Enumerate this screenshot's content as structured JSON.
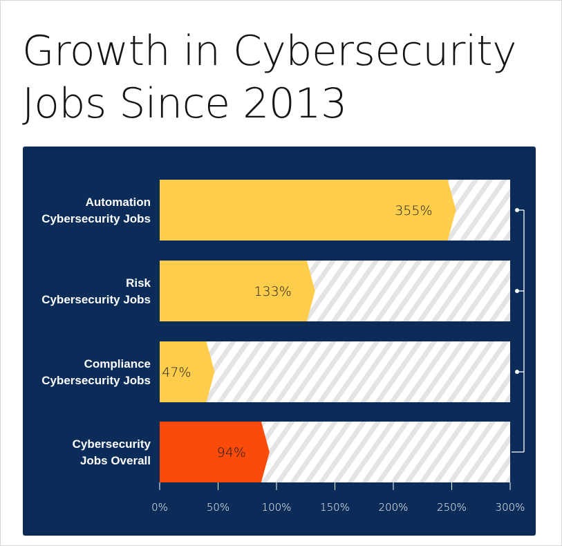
{
  "chart_data": {
    "type": "bar",
    "orientation": "horizontal",
    "title_lines": [
      "Growth in Cybersecurity",
      "Jobs Since 2013"
    ],
    "categories": [
      [
        "Automation",
        "Cybersecurity Jobs"
      ],
      [
        "Risk",
        "Cybersecurity Jobs"
      ],
      [
        "Compliance",
        "Cybersecurity Jobs"
      ],
      [
        "Cybersecurity",
        "Jobs Overall"
      ]
    ],
    "values": [
      355,
      133,
      47,
      94
    ],
    "value_labels": [
      "355%",
      "133%",
      "47%",
      "94%"
    ],
    "xlim": [
      0,
      300
    ],
    "xticks": [
      0,
      50,
      100,
      150,
      200,
      250,
      300
    ],
    "xtick_labels": [
      "0%",
      "50%",
      "100%",
      "150%",
      "200%",
      "250%",
      "300%"
    ],
    "bar_colors": [
      "#fdcd4b",
      "#fdcd4b",
      "#fdcd4b",
      "#fb4b0a"
    ],
    "colors": {
      "panel": "#0b2c59",
      "track": "#ffffff",
      "stripe": "#e4e4e4",
      "bracket": "#ffffff"
    },
    "grid": false,
    "legend": "none"
  }
}
